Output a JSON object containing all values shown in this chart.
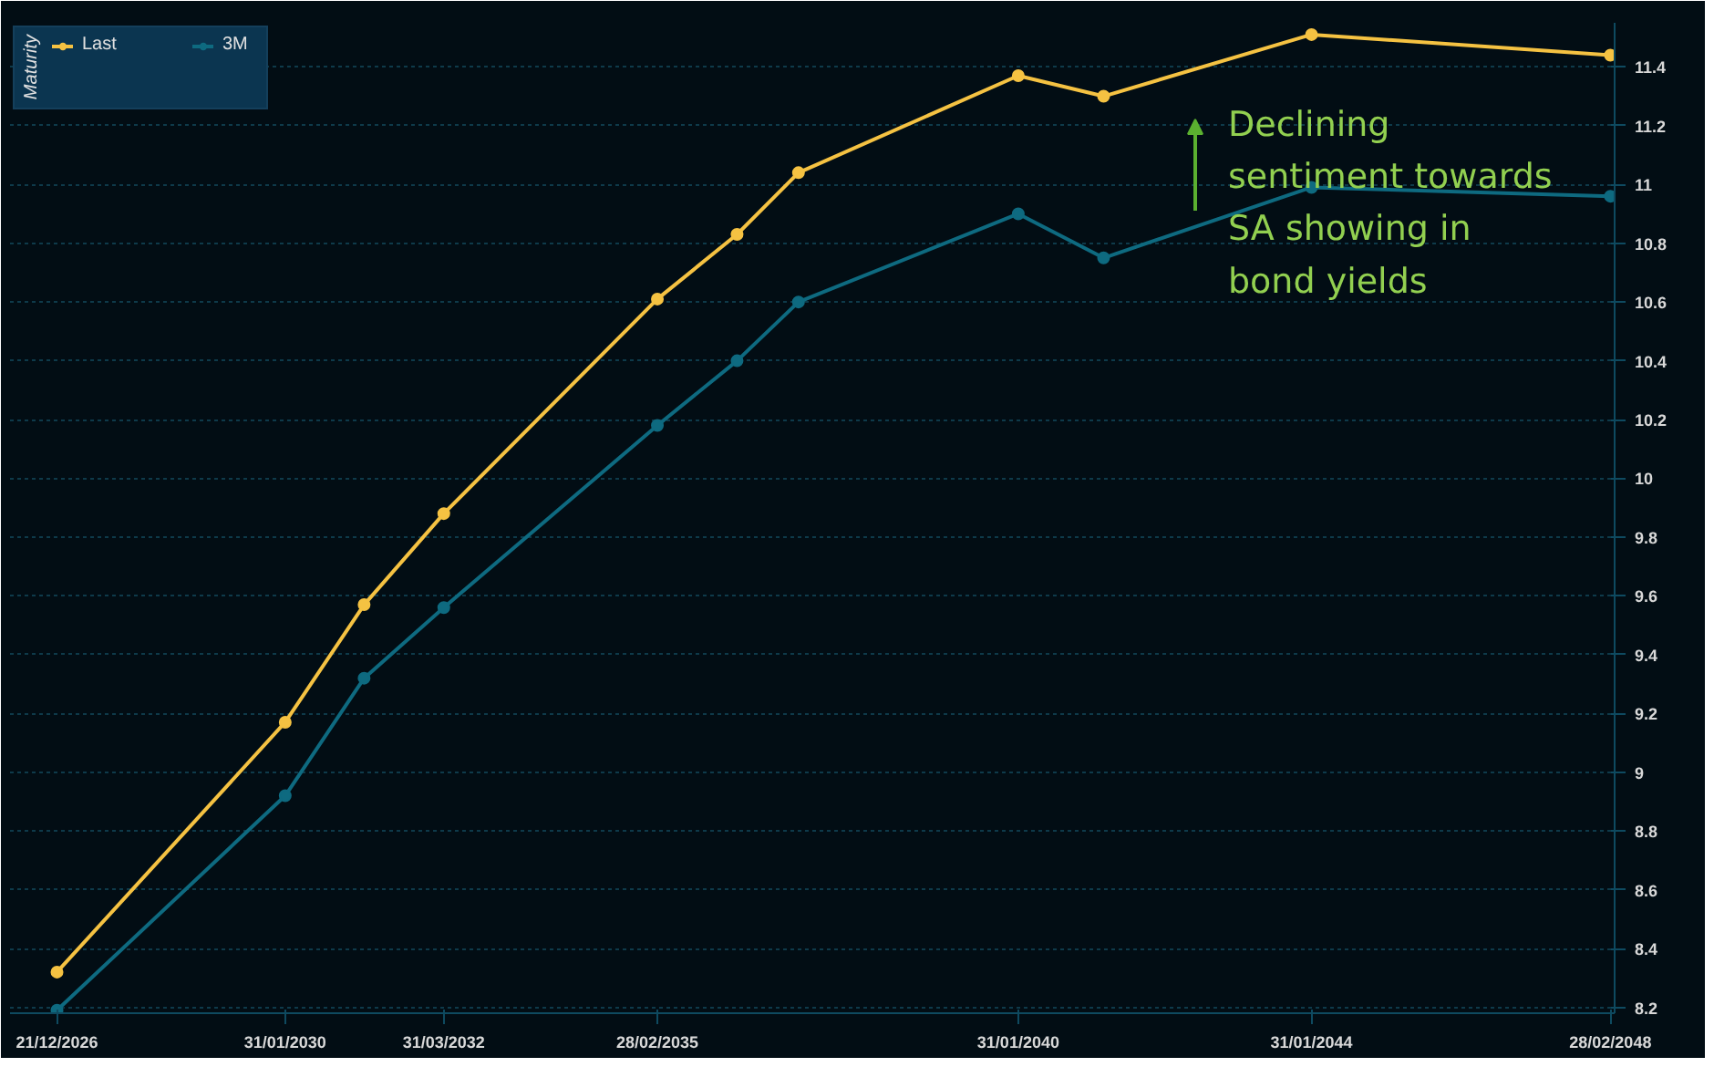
{
  "chart_data": {
    "type": "line",
    "legend_title": "Maturity",
    "legend": "top left",
    "grid": "y",
    "marker": "circle",
    "line_style": "solid",
    "x": [
      "2026-12-21",
      "2030-01-31",
      "2031-02-28",
      "2032-03-31",
      "2035-02-28",
      "2036-03-31",
      "2037-01-31",
      "2040-01-31",
      "2041-03-31",
      "2044-01-31",
      "2048-02-28"
    ],
    "series": [
      {
        "name": "Last",
        "color": "#f5c242",
        "values": [
          8.32,
          9.17,
          9.57,
          9.88,
          10.61,
          10.83,
          11.04,
          11.37,
          11.3,
          11.51,
          11.44
        ]
      },
      {
        "name": "3M",
        "color": "#0e6a80",
        "values": [
          8.19,
          8.92,
          9.32,
          9.56,
          10.18,
          10.4,
          10.6,
          10.9,
          10.75,
          10.99,
          10.96
        ]
      }
    ],
    "xlim": [
      "2026-05-01",
      "2048-03-20"
    ],
    "ylim": [
      8.18,
      11.55
    ],
    "xticks": [
      {
        "value": "2026-12-21",
        "label": "21/12/2026"
      },
      {
        "value": "2030-01-31",
        "label": "31/01/2030"
      },
      {
        "value": "2032-03-31",
        "label": "31/03/2032"
      },
      {
        "value": "2035-02-28",
        "label": "28/02/2035"
      },
      {
        "value": "2040-01-31",
        "label": "31/01/2040"
      },
      {
        "value": "2044-01-31",
        "label": "31/01/2044"
      },
      {
        "value": "2048-02-28",
        "label": "28/02/2048"
      }
    ],
    "yticks": [
      8.2,
      8.4,
      8.6,
      8.8,
      9,
      9.2,
      9.4,
      9.6,
      9.8,
      10,
      10.2,
      10.4,
      10.6,
      10.8,
      11,
      11.2,
      11.4
    ],
    "annotations": [
      "Declining sentiment towards SA showing in bond yields"
    ]
  }
}
